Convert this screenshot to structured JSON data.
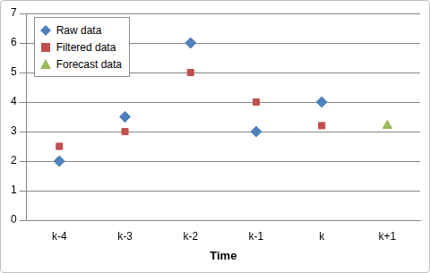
{
  "chart_data": {
    "type": "scatter",
    "x_label": "Time",
    "categories": [
      "k-4",
      "k-3",
      "k-2",
      "k-1",
      "k",
      "k+1"
    ],
    "series": [
      {
        "name": "Raw data",
        "color": "#4f81bd",
        "marker": "diamond",
        "values": [
          2,
          3.5,
          6,
          3,
          4,
          null
        ]
      },
      {
        "name": "Filtered data",
        "color": "#c0504d",
        "marker": "square",
        "values": [
          2.5,
          3,
          5,
          4,
          3.2,
          null
        ]
      },
      {
        "name": "Forecast data",
        "color": "#9bbb59",
        "marker": "triangle",
        "values": [
          null,
          null,
          null,
          null,
          null,
          3.2
        ]
      }
    ],
    "ylim": [
      0,
      7
    ],
    "yticks": [
      0,
      1,
      2,
      3,
      4,
      5,
      6,
      7
    ],
    "grid": true,
    "legend": "top-left"
  }
}
